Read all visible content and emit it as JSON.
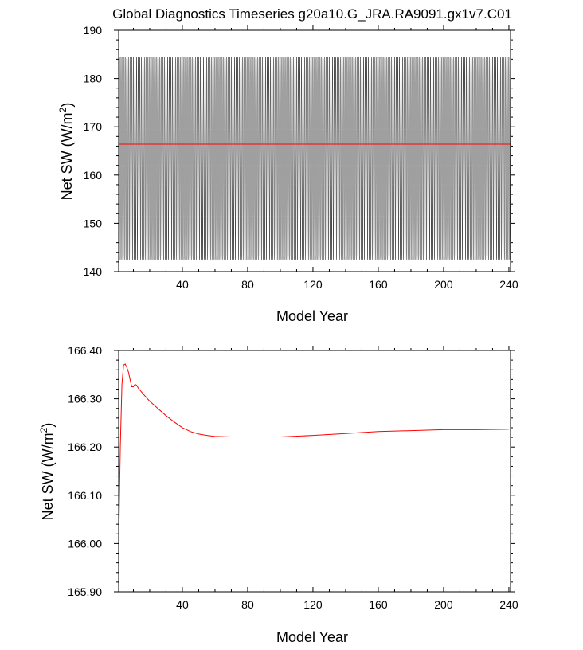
{
  "title": "Global Diagnostics Timeseries g20a10.G_JRA.RA9091.gx1v7.C01",
  "colors": {
    "monthly": "#000000",
    "annual_mean": "#ff0000"
  },
  "chart_data": [
    {
      "type": "line",
      "xlabel": "Model Year",
      "ylabel": "Net SW (W/m",
      "ylabel_sup": "2",
      "ylabel_end": ")",
      "xlim": [
        1,
        241
      ],
      "ylim": [
        140,
        190
      ],
      "xticks": [
        40,
        80,
        120,
        160,
        200,
        240
      ],
      "yticks": [
        140,
        150,
        160,
        170,
        180,
        190
      ],
      "ytick_labels": [
        "140",
        "150",
        "160",
        "170",
        "180",
        "190"
      ],
      "series": [
        {
          "role": "monthly",
          "color": "#000000",
          "seasonal_cycle": [
            184.4,
            181.0,
            172.5,
            162.0,
            151.5,
            143.5,
            142.5,
            148.0,
            158.0,
            169.5,
            179.5,
            184.0
          ],
          "x_range": [
            1,
            241
          ]
        },
        {
          "role": "annual_mean",
          "color": "#ff0000",
          "x": [
            1,
            241
          ],
          "y": [
            166.4,
            166.4
          ]
        }
      ]
    },
    {
      "type": "line",
      "xlabel": "Model Year",
      "ylabel": "Net SW (W/m",
      "ylabel_sup": "2",
      "ylabel_end": ")",
      "xlim": [
        1,
        241
      ],
      "ylim": [
        165.9,
        166.4
      ],
      "xticks": [
        40,
        80,
        120,
        160,
        200,
        240
      ],
      "yticks": [
        165.9,
        166.0,
        166.1,
        166.2,
        166.3,
        166.4
      ],
      "ytick_labels": [
        "165.90",
        "166.00",
        "166.10",
        "166.20",
        "166.30",
        "166.40"
      ],
      "series": [
        {
          "role": "annual_mean",
          "color": "#ff0000",
          "x": [
            1,
            2,
            3,
            4,
            5,
            6,
            7,
            8,
            9,
            10,
            11,
            12,
            13,
            14,
            16,
            20,
            25,
            30,
            35,
            40,
            45,
            50,
            55,
            60,
            70,
            80,
            100,
            120,
            140,
            160,
            180,
            200,
            220,
            240
          ],
          "y": [
            166.0,
            166.2,
            166.33,
            166.37,
            166.372,
            166.365,
            166.355,
            166.34,
            166.325,
            166.325,
            166.33,
            166.328,
            166.322,
            166.318,
            166.31,
            166.295,
            166.28,
            166.265,
            166.252,
            166.24,
            166.232,
            166.227,
            166.224,
            166.222,
            166.221,
            166.221,
            166.221,
            166.224,
            166.228,
            166.232,
            166.234,
            166.236,
            166.236,
            166.237
          ]
        }
      ]
    }
  ]
}
